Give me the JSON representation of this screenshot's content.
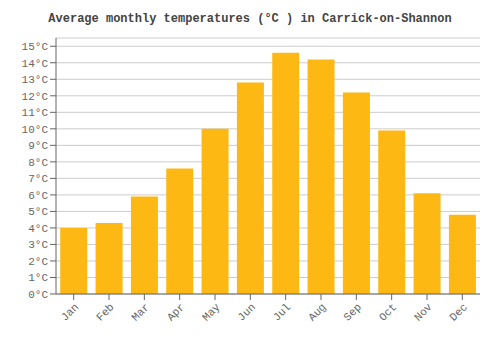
{
  "chart_data": {
    "type": "bar",
    "title": "Average monthly temperatures (°C ) in Carrick-on-Shannon",
    "categories": [
      "Jan",
      "Feb",
      "Mar",
      "Apr",
      "May",
      "Jun",
      "Jul",
      "Aug",
      "Sep",
      "Oct",
      "Nov",
      "Dec"
    ],
    "values": [
      4.0,
      4.3,
      5.9,
      7.6,
      10.0,
      12.8,
      14.6,
      14.2,
      12.2,
      9.9,
      6.1,
      4.8
    ],
    "color": "#FDB813",
    "ylim": [
      0,
      15.5
    ],
    "yticks": [
      {
        "value": 0,
        "label": "0°C"
      },
      {
        "value": 1,
        "label": "1°C"
      },
      {
        "value": 2,
        "label": "2°C"
      },
      {
        "value": 3,
        "label": "3°C"
      },
      {
        "value": 4,
        "label": "4°C"
      },
      {
        "value": 5,
        "label": "5°C"
      },
      {
        "value": 6,
        "label": "6°C"
      },
      {
        "value": 7,
        "label": "7°C"
      },
      {
        "value": 8,
        "label": "8°C"
      },
      {
        "value": 9,
        "label": "9°C"
      },
      {
        "value": 10,
        "label": "10°C"
      },
      {
        "value": 11,
        "label": "11°C"
      },
      {
        "value": 12,
        "label": "12°C"
      },
      {
        "value": 13,
        "label": "13°C"
      },
      {
        "value": 14,
        "label": "14°C"
      },
      {
        "value": 15,
        "label": "15°C"
      }
    ],
    "grid": true
  }
}
